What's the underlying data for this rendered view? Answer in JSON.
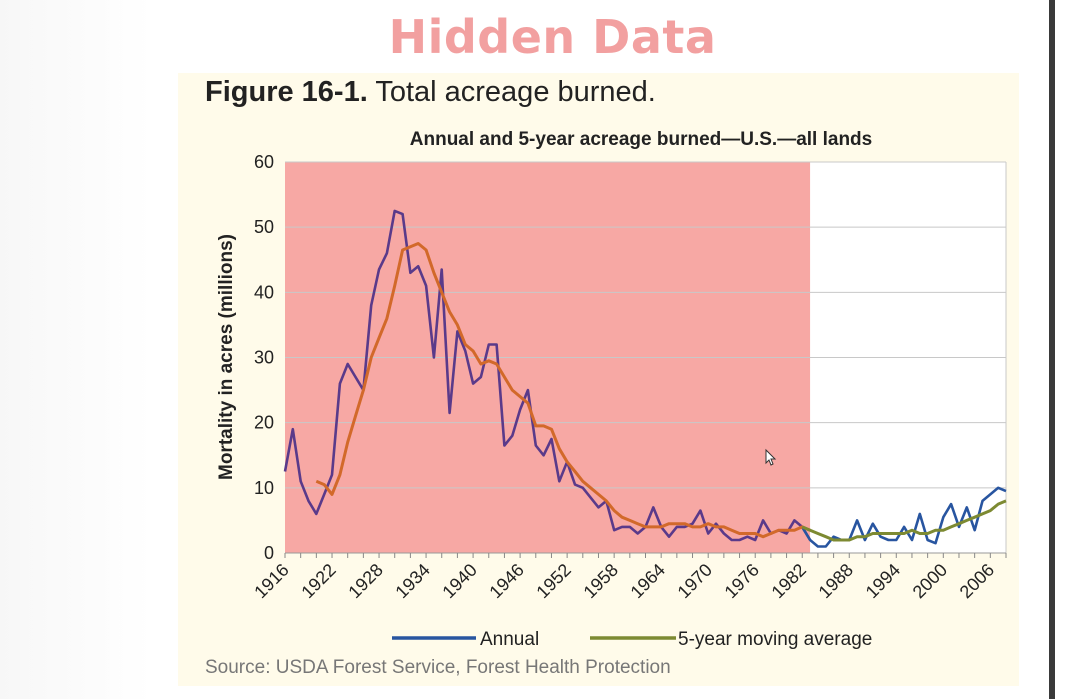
{
  "banner": "Hidden Data",
  "figure": {
    "label": "Figure 16-1.",
    "caption": "Total acreage burned.",
    "source": "Source: USDA Forest Service, Forest Health Protection"
  },
  "colors": {
    "annual": "#2855a0",
    "moving_average": "#7d8a32",
    "highlight": "#f7a8a4",
    "annual_in_highlight": "#5a3a8a",
    "moving_average_in_highlight": "#d2692a"
  },
  "chart_data": {
    "type": "line",
    "title": "Annual and 5-year acreage burned—U.S.—all lands",
    "xlabel": "",
    "ylabel": "Mortality in acres (millions)",
    "xlim": [
      1916,
      2008
    ],
    "ylim": [
      0,
      60
    ],
    "yticks": [
      0,
      10,
      20,
      30,
      40,
      50,
      60
    ],
    "xticks": [
      1916,
      1922,
      1928,
      1934,
      1940,
      1946,
      1952,
      1958,
      1964,
      1970,
      1976,
      1982,
      1988,
      1994,
      2000,
      2006
    ],
    "grid": true,
    "legend_position": "bottom",
    "highlight_region": [
      1916,
      1983
    ],
    "series": [
      {
        "name": "Annual",
        "x": [
          1916,
          1917,
          1918,
          1919,
          1920,
          1921,
          1922,
          1923,
          1924,
          1925,
          1926,
          1927,
          1928,
          1929,
          1930,
          1931,
          1932,
          1933,
          1934,
          1935,
          1936,
          1937,
          1938,
          1939,
          1940,
          1941,
          1942,
          1943,
          1944,
          1945,
          1946,
          1947,
          1948,
          1949,
          1950,
          1951,
          1952,
          1953,
          1954,
          1955,
          1956,
          1957,
          1958,
          1959,
          1960,
          1961,
          1962,
          1963,
          1964,
          1965,
          1966,
          1967,
          1968,
          1969,
          1970,
          1971,
          1972,
          1973,
          1974,
          1975,
          1976,
          1977,
          1978,
          1979,
          1980,
          1981,
          1982,
          1983,
          1984,
          1985,
          1986,
          1987,
          1988,
          1989,
          1990,
          1991,
          1992,
          1993,
          1994,
          1995,
          1996,
          1997,
          1998,
          1999,
          2000,
          2001,
          2002,
          2003,
          2004,
          2005,
          2006,
          2007,
          2008
        ],
        "y": [
          12.5,
          19,
          11,
          8,
          6,
          9,
          12,
          26,
          29,
          27,
          25,
          38,
          43.5,
          46,
          52.5,
          52,
          43,
          44,
          41,
          30,
          43.5,
          21.5,
          34,
          31,
          26,
          27,
          32,
          32,
          16.5,
          18,
          22,
          25,
          16.5,
          15,
          17.5,
          11,
          14,
          10.5,
          10,
          8.5,
          7,
          8,
          3.5,
          4,
          4,
          3,
          4,
          7,
          4,
          2.5,
          4,
          4,
          4.5,
          6.5,
          3,
          4.5,
          3,
          2,
          2,
          2.5,
          2,
          5,
          3,
          3.5,
          3,
          5,
          4,
          2,
          1,
          1,
          2.5,
          2,
          2,
          5,
          2,
          4.5,
          2.5,
          2,
          2,
          4,
          2,
          6,
          2,
          1.5,
          5.5,
          7.5,
          4,
          7,
          3.5,
          8,
          9,
          10,
          9.5
        ],
        "values_in_highlight_color": "annual_in_highlight",
        "values_after_highlight_color": "annual"
      },
      {
        "name": "5-year moving average",
        "x": [
          1920,
          1921,
          1922,
          1923,
          1924,
          1925,
          1926,
          1927,
          1928,
          1929,
          1930,
          1931,
          1932,
          1933,
          1934,
          1935,
          1936,
          1937,
          1938,
          1939,
          1940,
          1941,
          1942,
          1943,
          1944,
          1945,
          1946,
          1947,
          1948,
          1949,
          1950,
          1951,
          1952,
          1953,
          1954,
          1955,
          1956,
          1957,
          1958,
          1959,
          1960,
          1961,
          1962,
          1963,
          1964,
          1965,
          1966,
          1967,
          1968,
          1969,
          1970,
          1971,
          1972,
          1973,
          1974,
          1975,
          1976,
          1977,
          1978,
          1979,
          1980,
          1981,
          1982,
          1983,
          1984,
          1985,
          1986,
          1987,
          1988,
          1989,
          1990,
          1991,
          1992,
          1993,
          1994,
          1995,
          1996,
          1997,
          1998,
          1999,
          2000,
          2001,
          2002,
          2003,
          2004,
          2005,
          2006,
          2007,
          2008
        ],
        "y": [
          11,
          10.5,
          9,
          12,
          17,
          21,
          25,
          30,
          33,
          36,
          41,
          46.5,
          47,
          47.5,
          46.5,
          43,
          40,
          37,
          35,
          32,
          31,
          29,
          29.5,
          29,
          27,
          25,
          24,
          23,
          19.5,
          19.5,
          19,
          16,
          14,
          12.5,
          11,
          10,
          9,
          8,
          6.5,
          5.5,
          5,
          4.5,
          4,
          4,
          4,
          4.5,
          4.5,
          4.5,
          4,
          4,
          4.5,
          4,
          4,
          3.5,
          3,
          3,
          3,
          2.5,
          3,
          3.5,
          3.5,
          3.5,
          4,
          3.5,
          3,
          2.5,
          2,
          2,
          2,
          2.5,
          2.5,
          3,
          3,
          3,
          3,
          3,
          3.5,
          3,
          3,
          3.5,
          3.5,
          4,
          4.5,
          5,
          5.5,
          6,
          6.5,
          7.5,
          8
        ],
        "values_in_highlight_color": "moving_average_in_highlight",
        "values_after_highlight_color": "moving_average"
      }
    ]
  }
}
